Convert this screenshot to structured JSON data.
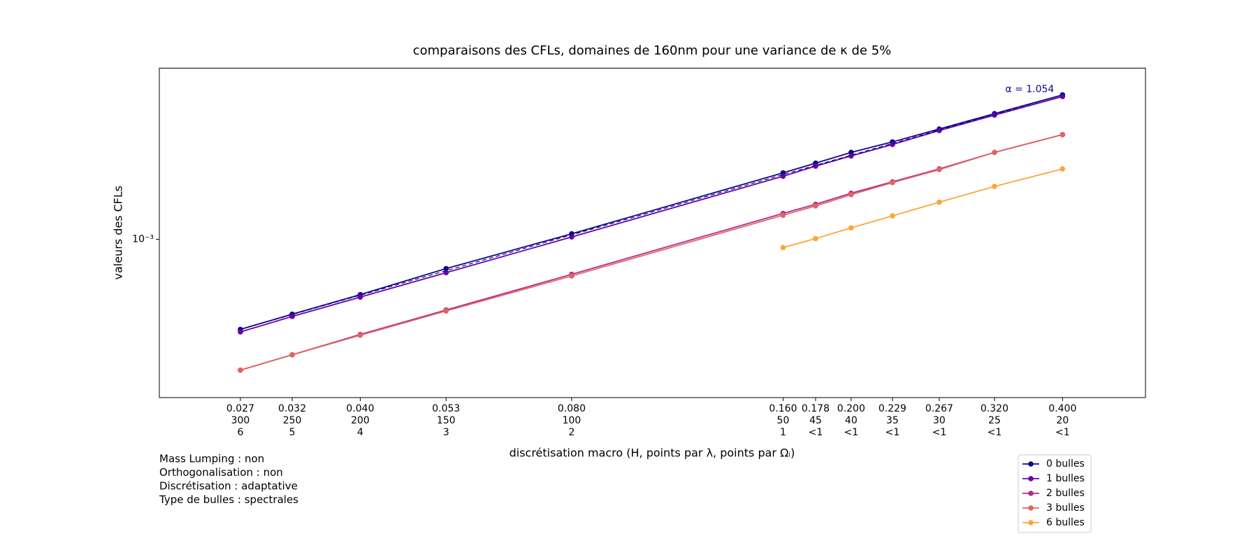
{
  "chart_data": {
    "type": "line",
    "title": "comparaisons des CFLs, domaines de 160nm pour une variance de κ de 5%",
    "xlabel": "discrétisation macro (H, points par λ, points par Ωᵢ)",
    "ylabel": "valeurs des CFLs",
    "annotation": "α = 1.054",
    "x": [
      0.027,
      0.032,
      0.04,
      0.053,
      0.08,
      0.16,
      0.178,
      0.2,
      0.229,
      0.267,
      0.32,
      0.4
    ],
    "xscale": "log",
    "yscale": "log",
    "xlim": [
      0.0207,
      0.525
    ],
    "ylim": [
      0.000147,
      0.00797
    ],
    "xticks": [
      {
        "value": 0.027,
        "label": "0.027"
      },
      {
        "value": 0.032,
        "label": "0.032"
      },
      {
        "value": 0.04,
        "label": "0.040"
      },
      {
        "value": 0.053,
        "label": "0.053"
      },
      {
        "value": 0.08,
        "label": "0.080"
      },
      {
        "value": 0.16,
        "label": "0.160"
      },
      {
        "value": 0.178,
        "label": "0.178"
      },
      {
        "value": 0.2,
        "label": "0.200"
      },
      {
        "value": 0.229,
        "label": "0.229"
      },
      {
        "value": 0.267,
        "label": "0.267"
      },
      {
        "value": 0.32,
        "label": "0.320"
      },
      {
        "value": 0.4,
        "label": "0.400"
      }
    ],
    "xtick_labels_points_lambda": [
      "300",
      "250",
      "200",
      "150",
      "100",
      "50",
      "45",
      "40",
      "35",
      "30",
      "25",
      "20"
    ],
    "xtick_labels_points_omega": [
      "6",
      "5",
      "4",
      "3",
      "2",
      "1",
      "<1",
      "<1",
      "<1",
      "<1",
      "<1",
      "<1"
    ],
    "yticks": [
      {
        "value": 0.001,
        "label": "10⁻³"
      }
    ],
    "grid": false,
    "legend": "lower right outside",
    "notes": [
      "Mass Lumping : non",
      "Orthogonalisation : non",
      "Discrétisation : adaptative",
      "Type de bulles : spectrales"
    ],
    "series": [
      {
        "name": "0 bulles",
        "color": "#0d0887",
        "values": [
          0.000336,
          0.000404,
          0.000512,
          0.000702,
          0.00107,
          0.00224,
          0.00252,
          0.00287,
          0.00326,
          0.00381,
          0.00459,
          0.00576
        ]
      },
      {
        "name": "1 bulles",
        "color": "#6a00a8",
        "values": [
          0.000326,
          0.000393,
          0.000497,
          0.000668,
          0.00103,
          0.00215,
          0.00243,
          0.00275,
          0.00316,
          0.00374,
          0.00451,
          0.00565
        ]
      },
      {
        "name": "2 bulles",
        "color": "#b12a90",
        "values": [
          0.000205,
          0.000247,
          0.000316,
          0.000425,
          0.000655,
          0.00137,
          0.00153,
          0.00175,
          0.00201,
          0.00235,
          0.00287,
          0.00356
        ]
      },
      {
        "name": "3 bulles",
        "color": "#e16462",
        "values": [
          0.000205,
          0.000247,
          0.000313,
          0.00042,
          0.000642,
          0.00134,
          0.0015,
          0.00172,
          0.00199,
          0.00233,
          0.00287,
          0.00356
        ]
      },
      {
        "name": "6 bulles",
        "color": "#fca636",
        "values": [
          null,
          null,
          null,
          null,
          null,
          0.000906,
          0.00101,
          0.00115,
          0.00133,
          0.00157,
          0.0019,
          0.00235
        ]
      }
    ]
  }
}
